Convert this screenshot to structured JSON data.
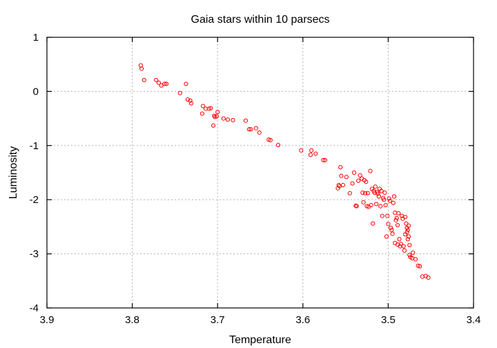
{
  "chart_data": {
    "type": "scatter",
    "title": "Gaia stars within 10 parsecs",
    "xlabel": "Temperature",
    "ylabel": "Luminosity",
    "xlim": [
      3.9,
      3.4
    ],
    "ylim": [
      -4,
      1
    ],
    "x_reversed": true,
    "grid": true,
    "marker": "open-circle",
    "color": "#ff0000",
    "xticks": [
      "3.9",
      "3.8",
      "3.7",
      "3.6",
      "3.5",
      "3.4"
    ],
    "yticks": [
      "1",
      "0",
      "-1",
      "-2",
      "-3",
      "-4"
    ],
    "series": [
      {
        "points": [
          [
            3.79,
            0.48
          ],
          [
            3.789,
            0.42
          ],
          [
            3.786,
            0.21
          ],
          [
            3.772,
            0.21
          ],
          [
            3.769,
            0.16
          ],
          [
            3.766,
            0.11
          ],
          [
            3.762,
            0.14
          ],
          [
            3.76,
            0.14
          ],
          [
            3.744,
            -0.03
          ],
          [
            3.737,
            0.14
          ],
          [
            3.735,
            -0.15
          ],
          [
            3.732,
            -0.17
          ],
          [
            3.731,
            -0.22
          ],
          [
            3.718,
            -0.41
          ],
          [
            3.717,
            -0.27
          ],
          [
            3.714,
            -0.32
          ],
          [
            3.71,
            -0.32
          ],
          [
            3.708,
            -0.31
          ],
          [
            3.705,
            -0.63
          ],
          [
            3.704,
            -0.45
          ],
          [
            3.703,
            -0.47
          ],
          [
            3.701,
            -0.46
          ],
          [
            3.7,
            -0.38
          ],
          [
            3.693,
            -0.5
          ],
          [
            3.688,
            -0.52
          ],
          [
            3.682,
            -0.53
          ],
          [
            3.667,
            -0.54
          ],
          [
            3.663,
            -0.7
          ],
          [
            3.661,
            -0.7
          ],
          [
            3.655,
            -0.68
          ],
          [
            3.651,
            -0.76
          ],
          [
            3.64,
            -0.89
          ],
          [
            3.638,
            -0.9
          ],
          [
            3.629,
            -0.99
          ],
          [
            3.602,
            -1.09
          ],
          [
            3.591,
            -1.17
          ],
          [
            3.59,
            -1.09
          ],
          [
            3.585,
            -1.15
          ],
          [
            3.576,
            -1.27
          ],
          [
            3.574,
            -1.27
          ],
          [
            3.559,
            -1.79
          ],
          [
            3.558,
            -1.73
          ],
          [
            3.557,
            -1.75
          ],
          [
            3.556,
            -1.4
          ],
          [
            3.555,
            -1.56
          ],
          [
            3.553,
            -1.73
          ],
          [
            3.549,
            -1.58
          ],
          [
            3.545,
            -1.88
          ],
          [
            3.542,
            -1.7
          ],
          [
            3.54,
            -1.5
          ],
          [
            3.538,
            -2.11
          ],
          [
            3.537,
            -2.12
          ],
          [
            3.535,
            -1.65
          ],
          [
            3.533,
            -1.55
          ],
          [
            3.531,
            -1.61
          ],
          [
            3.53,
            -1.87
          ],
          [
            3.529,
            -2.05
          ],
          [
            3.528,
            -1.64
          ],
          [
            3.527,
            -1.88
          ],
          [
            3.526,
            -1.67
          ],
          [
            3.525,
            -2.12
          ],
          [
            3.524,
            -1.88
          ],
          [
            3.523,
            -2.13
          ],
          [
            3.521,
            -1.47
          ],
          [
            3.52,
            -2.1
          ],
          [
            3.519,
            -1.8
          ],
          [
            3.518,
            -2.44
          ],
          [
            3.517,
            -1.84
          ],
          [
            3.516,
            -1.87
          ],
          [
            3.515,
            -1.76
          ],
          [
            3.514,
            -2.08
          ],
          [
            3.513,
            -1.86
          ],
          [
            3.512,
            -1.89
          ],
          [
            3.511,
            -1.94
          ],
          [
            3.51,
            -1.8
          ],
          [
            3.509,
            -2.12
          ],
          [
            3.508,
            -1.84
          ],
          [
            3.507,
            -2.3
          ],
          [
            3.506,
            -1.97
          ],
          [
            3.505,
            -2.0
          ],
          [
            3.504,
            -1.87
          ],
          [
            3.503,
            -2.1
          ],
          [
            3.502,
            -2.68
          ],
          [
            3.501,
            -2.3
          ],
          [
            3.5,
            -2.45
          ],
          [
            3.499,
            -1.98
          ],
          [
            3.498,
            -2.02
          ],
          [
            3.497,
            -2.52
          ],
          [
            3.496,
            -2.56
          ],
          [
            3.495,
            -2.63
          ],
          [
            3.494,
            -2.06
          ],
          [
            3.493,
            -1.94
          ],
          [
            3.492,
            -2.24
          ],
          [
            3.492,
            -2.8
          ],
          [
            3.491,
            -2.38
          ],
          [
            3.49,
            -2.34
          ],
          [
            3.489,
            -2.83
          ],
          [
            3.489,
            -2.47
          ],
          [
            3.488,
            -2.25
          ],
          [
            3.487,
            -2.73
          ],
          [
            3.486,
            -2.86
          ],
          [
            3.485,
            -2.82
          ],
          [
            3.484,
            -2.3
          ],
          [
            3.483,
            -2.35
          ],
          [
            3.482,
            -2.86
          ],
          [
            3.481,
            -2.94
          ],
          [
            3.48,
            -2.32
          ],
          [
            3.48,
            -2.64
          ],
          [
            3.479,
            -2.44
          ],
          [
            3.478,
            -2.52
          ],
          [
            3.478,
            -2.6
          ],
          [
            3.477,
            -2.56
          ],
          [
            3.477,
            -2.73
          ],
          [
            3.476,
            -2.48
          ],
          [
            3.476,
            -2.68
          ],
          [
            3.475,
            -2.84
          ],
          [
            3.475,
            -3.02
          ],
          [
            3.474,
            -3.06
          ],
          [
            3.472,
            -3.08
          ],
          [
            3.471,
            -2.98
          ],
          [
            3.468,
            -3.1
          ],
          [
            3.465,
            -3.22
          ],
          [
            3.463,
            -3.23
          ],
          [
            3.46,
            -3.42
          ],
          [
            3.456,
            -3.41
          ],
          [
            3.453,
            -3.44
          ]
        ]
      }
    ]
  }
}
